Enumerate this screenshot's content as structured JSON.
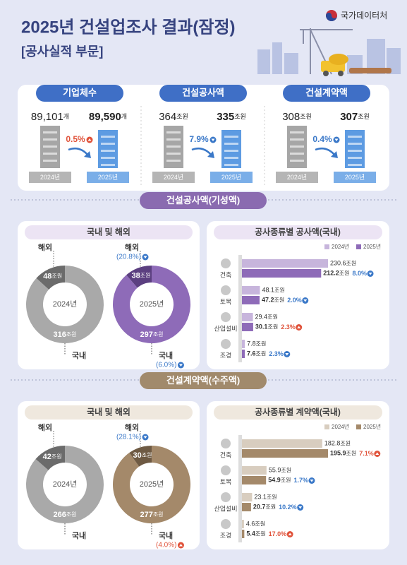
{
  "header": {
    "title": "2025년 건설업조사 결과(잠정)",
    "subtitle": "[공사실적 부문]",
    "agency": "국가데이터처"
  },
  "summary": [
    {
      "title": "기업체수",
      "unit": "개",
      "items": [
        {
          "year": "2024년",
          "value": "89,101"
        },
        {
          "year": "2025년",
          "value": "89,590"
        }
      ],
      "change": "0.5%",
      "direction": "up"
    },
    {
      "title": "건설공사액",
      "unit": "조원",
      "items": [
        {
          "year": "2024년",
          "value": "364"
        },
        {
          "year": "2025년",
          "value": "335"
        }
      ],
      "change": "7.9%",
      "direction": "down"
    },
    {
      "title": "건설계약액",
      "unit": "조원",
      "items": [
        {
          "year": "2024년",
          "value": "308"
        },
        {
          "year": "2025년",
          "value": "307"
        }
      ],
      "change": "0.4%",
      "direction": "down"
    }
  ],
  "sections": [
    {
      "title": "건설공사액(기성액)",
      "pill_color": "#8a6bb0",
      "light_color": "#ece4f4",
      "donut": {
        "title": "국내 및 해외",
        "unit": "조원",
        "overseas_label": "해외",
        "domestic_label": "국내",
        "years": [
          {
            "year": "2024년",
            "overseas": 48,
            "domestic": 316,
            "overseas_color": "#6b6b6b",
            "domestic_color": "#a9a9a9"
          },
          {
            "year": "2025년",
            "overseas": 38,
            "domestic": 297,
            "overseas_color": "#5b3f80",
            "domestic_color": "#8e6bb8",
            "overseas_change": "(20.8%)",
            "overseas_direction": "down",
            "domestic_change": "(6.0%)",
            "domestic_direction": "down"
          }
        ]
      },
      "bars": {
        "title": "공사종류별 공사액(국내)",
        "unit": "조원",
        "categories": [
          "건축",
          "토목",
          "산업설비",
          "조경"
        ],
        "series": [
          {
            "name": "2024년",
            "color": "#c7b5dc",
            "values": [
              230.6,
              48.1,
              29.4,
              7.8
            ]
          },
          {
            "name": "2025년",
            "color": "#8e6bb8",
            "values": [
              212.2,
              47.2,
              30.1,
              7.6
            ]
          }
        ],
        "changes": [
          "8.0%",
          "2.0%",
          "2.3%",
          "2.3%"
        ],
        "directions": [
          "down",
          "down",
          "up",
          "down"
        ]
      }
    },
    {
      "title": "건설계약액(수주액)",
      "pill_color": "#a18a6c",
      "light_color": "#efe8de",
      "donut": {
        "title": "국내 및 해외",
        "unit": "조원",
        "overseas_label": "해외",
        "domestic_label": "국내",
        "years": [
          {
            "year": "2024년",
            "overseas": 42,
            "domestic": 266,
            "overseas_color": "#6b6b6b",
            "domestic_color": "#a9a9a9"
          },
          {
            "year": "2025년",
            "overseas": 30,
            "domestic": 277,
            "overseas_color": "#6e5a43",
            "domestic_color": "#a4896a",
            "overseas_change": "(28.1%)",
            "overseas_direction": "down",
            "domestic_change": "(4.0%)",
            "domestic_direction": "up"
          }
        ]
      },
      "bars": {
        "title": "공사종류별 계약액(국내)",
        "unit": "조원",
        "categories": [
          "건축",
          "토목",
          "산업설비",
          "조경"
        ],
        "series": [
          {
            "name": "2024년",
            "color": "#d8cdbf",
            "values": [
              182.8,
              55.9,
              23.1,
              4.6
            ]
          },
          {
            "name": "2025년",
            "color": "#a4896a",
            "values": [
              195.9,
              54.9,
              20.7,
              5.4
            ]
          }
        ],
        "changes": [
          "7.1%",
          "1.7%",
          "10.2%",
          "17.0%"
        ],
        "directions": [
          "up",
          "down",
          "down",
          "up"
        ]
      }
    }
  ]
}
